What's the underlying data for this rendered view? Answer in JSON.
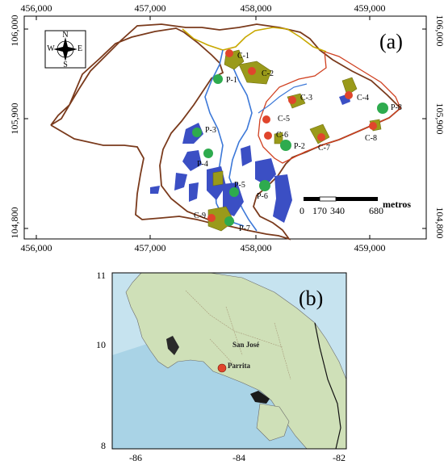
{
  "panel_a": {
    "tag": "(a)",
    "x_ticks": [
      "456,000",
      "457,000",
      "458,000",
      "459,000"
    ],
    "y_ticks_left": [
      "106,000",
      "105,900",
      "104,800"
    ],
    "y_ticks_right": [
      "106,000",
      "105,900",
      "104,800"
    ],
    "compass": {
      "n": "N",
      "s": "S",
      "e": "E",
      "w": "W"
    },
    "scale_bar": {
      "labels": [
        "0",
        "170",
        "340",
        "680"
      ],
      "unit": "metros"
    },
    "points": [
      {
        "id": "C-1",
        "type": "C"
      },
      {
        "id": "C-2",
        "type": "C"
      },
      {
        "id": "C-3",
        "type": "C"
      },
      {
        "id": "C-4",
        "type": "C"
      },
      {
        "id": "C-5",
        "type": "C"
      },
      {
        "id": "C-6",
        "type": "C"
      },
      {
        "id": "C-7",
        "type": "C"
      },
      {
        "id": "C-8",
        "type": "C"
      },
      {
        "id": "C-9",
        "type": "C"
      },
      {
        "id": "P-1",
        "type": "P"
      },
      {
        "id": "P-2",
        "type": "P"
      },
      {
        "id": "P-3",
        "type": "P"
      },
      {
        "id": "P-4",
        "type": "P"
      },
      {
        "id": "P-5",
        "type": "P"
      },
      {
        "id": "P-6",
        "type": "P"
      },
      {
        "id": "P-7",
        "type": "P"
      },
      {
        "id": "P-8",
        "type": "P"
      }
    ],
    "colors": {
      "boundary": "#7a3a1c",
      "sub_boundary": "#d04020",
      "river": "#3c78d8",
      "yellow_line": "#c8a800",
      "water_bodies": "#3b4fc4",
      "vegetation": "#9a9a1a",
      "c_point": "#e0452c",
      "p_point": "#2eab4e"
    }
  },
  "panel_b": {
    "tag": "(b)",
    "x_ticks": [
      "-86",
      "-84",
      "-82"
    ],
    "y_ticks": [
      "11",
      "10",
      "8"
    ],
    "labels": {
      "capital": "San José",
      "site": "Parrita"
    },
    "colors": {
      "sea": "#a9d3e6",
      "land": "#cfe0b8",
      "site_marker": "#e0452c"
    }
  }
}
